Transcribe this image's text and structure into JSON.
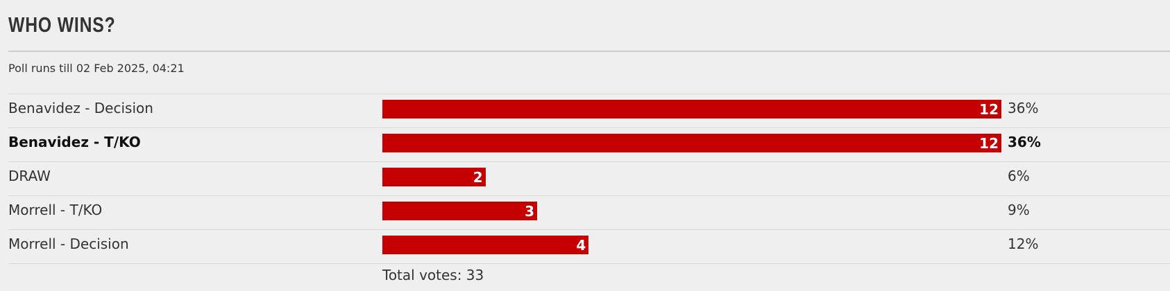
{
  "poll": {
    "title": "WHO WINS?",
    "subtitle": "Poll runs till 02 Feb 2025, 04:21",
    "bar_color": "#c40000",
    "options": [
      {
        "label": "Benavidez - Decision",
        "votes": 12,
        "percent": "36%"
      },
      {
        "label": "Benavidez - T/KO",
        "votes": 12,
        "percent": "36%",
        "selected": true
      },
      {
        "label": "DRAW",
        "votes": 2,
        "percent": "6%"
      },
      {
        "label": "Morrell - T/KO",
        "votes": 3,
        "percent": "9%"
      },
      {
        "label": "Morrell - Decision",
        "votes": 4,
        "percent": "12%"
      }
    ],
    "total": "Total votes: 33"
  }
}
